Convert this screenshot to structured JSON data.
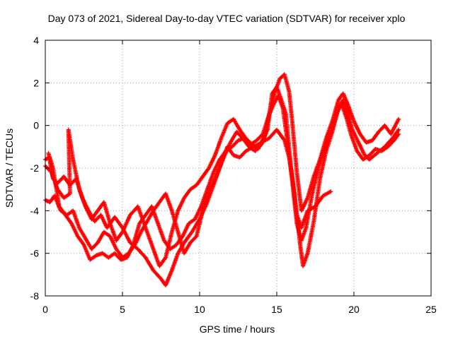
{
  "chart_data": {
    "type": "scatter",
    "title": "Day 073 of 2021, Sidereal Day-to-day VTEC variation (SDTVAR) for receiver xplo",
    "xlabel": "GPS time / hours",
    "ylabel": "SDTVAR / TECUs",
    "xlim": [
      0,
      25
    ],
    "ylim": [
      -8,
      4
    ],
    "xticks": [
      0,
      5,
      10,
      15,
      20,
      25
    ],
    "yticks": [
      -8,
      -6,
      -4,
      -2,
      0,
      2,
      4
    ],
    "grid": true,
    "marker": "+",
    "color": "#ff0000",
    "series": [
      {
        "points": [
          [
            0.0,
            -1.6
          ],
          [
            0.25,
            -1.5
          ],
          [
            0.5,
            -2.5
          ],
          [
            0.8,
            -2.7
          ],
          [
            1.2,
            -2.4
          ],
          [
            1.6,
            -2.8
          ],
          [
            2.0,
            -2.5
          ],
          [
            2.4,
            -3.4
          ],
          [
            2.8,
            -4.0
          ],
          [
            3.2,
            -4.5
          ],
          [
            3.6,
            -4.2
          ],
          [
            4.0,
            -4.8
          ],
          [
            4.5,
            -4.3
          ],
          [
            5.0,
            -4.8
          ],
          [
            5.5,
            -5.5
          ],
          [
            6.0,
            -5.8
          ],
          [
            6.5,
            -6.2
          ],
          [
            7.0,
            -6.8
          ],
          [
            7.5,
            -7.2
          ],
          [
            7.8,
            -7.5
          ],
          [
            8.2,
            -6.8
          ],
          [
            8.6,
            -6.0
          ],
          [
            9.0,
            -5.5
          ],
          [
            9.5,
            -5.0
          ],
          [
            10.0,
            -4.4
          ],
          [
            10.5,
            -3.6
          ],
          [
            11.0,
            -2.6
          ],
          [
            11.4,
            -1.8
          ],
          [
            11.8,
            -1.0
          ],
          [
            12.2,
            -1.4
          ],
          [
            12.6,
            -1.5
          ],
          [
            13.0,
            -1.2
          ],
          [
            13.5,
            -1.0
          ],
          [
            14.0,
            -0.8
          ],
          [
            14.5,
            -0.6
          ],
          [
            15.0,
            -0.2
          ],
          [
            15.5,
            -0.7
          ],
          [
            15.8,
            -1.5
          ],
          [
            16.1,
            -3.0
          ],
          [
            16.3,
            -4.2
          ],
          [
            16.6,
            -4.8
          ],
          [
            17.0,
            -4.0
          ],
          [
            17.5,
            -3.8
          ],
          [
            18.0,
            -3.3
          ],
          [
            18.5,
            -3.1
          ]
        ]
      },
      {
        "points": [
          [
            0.0,
            -3.5
          ],
          [
            0.3,
            -3.6
          ],
          [
            0.6,
            -3.3
          ],
          [
            1.0,
            -4.0
          ],
          [
            1.4,
            -4.2
          ],
          [
            1.8,
            -4.0
          ],
          [
            2.2,
            -4.8
          ],
          [
            2.6,
            -5.3
          ],
          [
            3.0,
            -5.8
          ],
          [
            3.4,
            -5.5
          ],
          [
            3.8,
            -5.0
          ],
          [
            4.2,
            -5.2
          ],
          [
            4.6,
            -5.8
          ],
          [
            5.0,
            -6.2
          ],
          [
            5.4,
            -6.0
          ],
          [
            5.8,
            -5.6
          ],
          [
            6.2,
            -5.0
          ],
          [
            6.6,
            -4.5
          ],
          [
            7.0,
            -4.0
          ],
          [
            7.4,
            -3.6
          ],
          [
            7.8,
            -3.2
          ],
          [
            8.2,
            -4.0
          ],
          [
            8.6,
            -5.0
          ],
          [
            9.0,
            -6.0
          ],
          [
            9.4,
            -5.5
          ],
          [
            9.8,
            -5.2
          ],
          [
            10.2,
            -4.0
          ],
          [
            10.6,
            -3.2
          ],
          [
            11.0,
            -2.5
          ],
          [
            11.5,
            -1.6
          ],
          [
            12.0,
            -0.8
          ],
          [
            12.4,
            -0.3
          ],
          [
            12.8,
            -0.6
          ],
          [
            13.2,
            -1.0
          ],
          [
            13.6,
            -1.2
          ],
          [
            14.0,
            -0.9
          ],
          [
            14.4,
            -0.2
          ],
          [
            14.7,
            1.5
          ],
          [
            15.0,
            1.8
          ],
          [
            15.3,
            1.2
          ],
          [
            15.6,
            0.5
          ],
          [
            15.9,
            -1.8
          ],
          [
            16.2,
            -3.5
          ],
          [
            16.5,
            -5.5
          ],
          [
            16.7,
            -6.6
          ],
          [
            17.0,
            -6.0
          ],
          [
            17.4,
            -4.5
          ],
          [
            17.8,
            -2.5
          ],
          [
            18.2,
            -1.2
          ],
          [
            18.6,
            -0.3
          ],
          [
            19.0,
            0.8
          ],
          [
            19.3,
            1.2
          ],
          [
            19.6,
            0.6
          ],
          [
            19.9,
            -0.2
          ],
          [
            20.3,
            -0.8
          ],
          [
            20.7,
            -1.4
          ],
          [
            21.0,
            -1.6
          ],
          [
            21.5,
            -1.3
          ],
          [
            22.0,
            -1.0
          ],
          [
            22.5,
            -0.6
          ],
          [
            22.9,
            -0.2
          ]
        ]
      },
      {
        "points": [
          [
            0.0,
            -1.9
          ],
          [
            0.4,
            -2.2
          ],
          [
            0.8,
            -3.0
          ],
          [
            1.2,
            -3.4
          ],
          [
            1.6,
            -3.2
          ],
          [
            1.5,
            -0.2
          ],
          [
            1.8,
            -1.6
          ],
          [
            2.2,
            -3.0
          ],
          [
            2.6,
            -3.8
          ],
          [
            3.0,
            -4.4
          ],
          [
            3.4,
            -4.0
          ],
          [
            3.8,
            -3.6
          ],
          [
            4.2,
            -4.6
          ],
          [
            4.6,
            -5.4
          ],
          [
            5.0,
            -5.0
          ],
          [
            5.5,
            -4.2
          ],
          [
            6.0,
            -3.8
          ],
          [
            6.5,
            -4.8
          ],
          [
            7.0,
            -5.8
          ],
          [
            7.4,
            -6.6
          ],
          [
            7.8,
            -6.2
          ],
          [
            8.2,
            -5.0
          ],
          [
            8.6,
            -4.0
          ],
          [
            9.0,
            -3.4
          ],
          [
            9.4,
            -3.0
          ],
          [
            9.8,
            -2.8
          ],
          [
            10.2,
            -2.4
          ],
          [
            10.6,
            -2.0
          ],
          [
            11.0,
            -1.4
          ],
          [
            11.4,
            -0.6
          ],
          [
            11.8,
            0.1
          ],
          [
            12.2,
            0.3
          ],
          [
            12.6,
            -0.2
          ],
          [
            13.0,
            -0.6
          ],
          [
            13.4,
            -0.9
          ],
          [
            13.8,
            -1.1
          ],
          [
            14.2,
            -0.5
          ],
          [
            14.6,
            0.8
          ],
          [
            14.9,
            1.6
          ],
          [
            15.2,
            2.2
          ],
          [
            15.5,
            2.4
          ],
          [
            15.8,
            1.6
          ],
          [
            16.0,
            0.2
          ],
          [
            16.3,
            -2.2
          ],
          [
            16.6,
            -4.0
          ],
          [
            17.0,
            -3.4
          ],
          [
            17.4,
            -2.4
          ],
          [
            17.8,
            -1.6
          ],
          [
            18.2,
            -0.6
          ],
          [
            18.6,
            0.2
          ],
          [
            19.0,
            1.2
          ],
          [
            19.3,
            1.5
          ],
          [
            19.6,
            1.0
          ],
          [
            20.0,
            0.2
          ],
          [
            20.4,
            -0.4
          ],
          [
            20.8,
            -0.8
          ],
          [
            21.2,
            -0.7
          ],
          [
            21.6,
            -0.3
          ],
          [
            22.0,
            0.0
          ],
          [
            22.4,
            -0.4
          ],
          [
            22.9,
            0.3
          ]
        ]
      },
      {
        "points": [
          [
            0.2,
            -1.3
          ],
          [
            0.5,
            -2.0
          ],
          [
            0.9,
            -3.8
          ],
          [
            1.3,
            -4.2
          ],
          [
            1.7,
            -4.6
          ],
          [
            2.1,
            -5.2
          ],
          [
            2.5,
            -5.6
          ],
          [
            2.9,
            -6.3
          ],
          [
            3.3,
            -6.1
          ],
          [
            3.7,
            -6.0
          ],
          [
            4.1,
            -6.2
          ],
          [
            4.5,
            -6.0
          ],
          [
            4.9,
            -6.3
          ],
          [
            5.3,
            -6.2
          ],
          [
            5.7,
            -5.6
          ],
          [
            6.1,
            -4.6
          ],
          [
            6.5,
            -4.2
          ],
          [
            6.9,
            -3.8
          ],
          [
            7.3,
            -4.6
          ],
          [
            7.7,
            -5.4
          ],
          [
            8.1,
            -5.8
          ],
          [
            8.5,
            -5.6
          ],
          [
            8.9,
            -5.2
          ],
          [
            9.3,
            -4.6
          ],
          [
            9.7,
            -4.4
          ],
          [
            10.1,
            -3.8
          ],
          [
            10.5,
            -3.0
          ],
          [
            10.9,
            -2.2
          ],
          [
            11.3,
            -1.6
          ],
          [
            11.7,
            -1.2
          ],
          [
            12.1,
            -1.0
          ],
          [
            12.5,
            -0.7
          ],
          [
            12.9,
            -0.6
          ],
          [
            13.3,
            -0.9
          ],
          [
            13.7,
            -0.7
          ],
          [
            14.1,
            -0.4
          ],
          [
            14.5,
            0.5
          ],
          [
            14.8,
            1.0
          ],
          [
            15.1,
            1.4
          ],
          [
            15.4,
            0.8
          ],
          [
            15.7,
            -0.8
          ],
          [
            16.0,
            -2.6
          ],
          [
            16.3,
            -4.6
          ],
          [
            16.6,
            -5.4
          ],
          [
            16.9,
            -4.8
          ],
          [
            17.3,
            -3.2
          ],
          [
            17.7,
            -2.0
          ],
          [
            18.1,
            -1.0
          ],
          [
            18.5,
            -0.4
          ],
          [
            18.9,
            0.6
          ],
          [
            19.2,
            1.0
          ],
          [
            19.5,
            0.4
          ],
          [
            19.8,
            -0.4
          ],
          [
            20.2,
            -1.2
          ],
          [
            20.6,
            -1.6
          ],
          [
            21.0,
            -1.4
          ],
          [
            21.4,
            -1.1
          ],
          [
            21.8,
            -1.2
          ],
          [
            22.2,
            -1.0
          ],
          [
            22.6,
            -0.7
          ],
          [
            22.9,
            -0.4
          ]
        ]
      }
    ]
  }
}
